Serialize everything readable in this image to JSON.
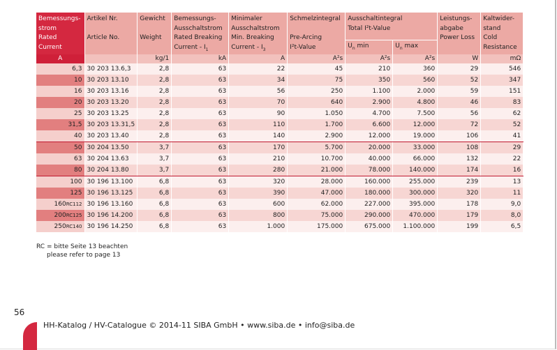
{
  "page_number": "56",
  "table": {
    "header": [
      {
        "de": [
          "Bemessungs-",
          "strom"
        ],
        "en": [
          "Rated",
          "Current"
        ]
      },
      {
        "de": [
          "Artikel Nr."
        ],
        "en": [
          "Article No."
        ]
      },
      {
        "de": [
          "Gewicht"
        ],
        "en": [
          "Weight"
        ]
      },
      {
        "de": [
          "Bemessungs-",
          "Ausschaltstrom"
        ],
        "en": [
          "Rated Breaking",
          {
            "text": "Current - I",
            "sub": "1"
          }
        ]
      },
      {
        "de": [
          "Minimaler",
          "Ausschaltstrom"
        ],
        "en": [
          "Min. Breaking",
          {
            "text": "Current - I",
            "sub": "3"
          }
        ]
      },
      {
        "de": [
          "Schmelzintegral"
        ],
        "en": [
          "Pre-Arcing",
          "I²t-Value"
        ]
      },
      {
        "de": [
          "Ausschaltintegral"
        ],
        "en": [
          "Total I²t-Value"
        ],
        "sub_columns": [
          {
            "text": "U",
            "sub": "n",
            "tail": " min"
          },
          {
            "text": "U",
            "sub": "n",
            "tail": " max"
          }
        ]
      },
      {
        "de": [
          "Leistungs-",
          "abgabe"
        ],
        "en": [
          "Power Loss"
        ]
      },
      {
        "de": [
          "Kaltwider-",
          "stand"
        ],
        "en": [
          "Cold",
          "Resistance"
        ]
      }
    ],
    "units": [
      "A",
      null,
      "kg/1",
      "kA",
      "A",
      "A²s",
      "A²s",
      "A²s",
      "W",
      "mΩ"
    ],
    "rows": [
      {
        "current": "6,3",
        "cells": [
          "30 203 13.6,3",
          "2,8",
          "63",
          "22",
          "45",
          "210",
          "360",
          "29",
          "546"
        ]
      },
      {
        "current": "10",
        "cells": [
          "30 203 13.10",
          "2,8",
          "63",
          "34",
          "75",
          "350",
          "560",
          "52",
          "347"
        ]
      },
      {
        "current": "16",
        "cells": [
          "30 203 13.16",
          "2,8",
          "63",
          "56",
          "250",
          "1.100",
          "2.000",
          "59",
          "151"
        ]
      },
      {
        "current": "20",
        "cells": [
          "30 203 13.20",
          "2,8",
          "63",
          "70",
          "640",
          "2.900",
          "4.800",
          "46",
          "83"
        ]
      },
      {
        "current": "25",
        "cells": [
          "30 203 13.25",
          "2,8",
          "63",
          "90",
          "1.050",
          "4.700",
          "7.500",
          "56",
          "62"
        ]
      },
      {
        "current": "31,5",
        "cells": [
          "30 203 13.31,5",
          "2,8",
          "63",
          "110",
          "1.700",
          "6.600",
          "12.000",
          "72",
          "52"
        ]
      },
      {
        "current": "40",
        "cells": [
          "30 203 13.40",
          "2,8",
          "63",
          "140",
          "2.900",
          "12.000",
          "19.000",
          "106",
          "41"
        ]
      },
      {
        "current": "50",
        "cells": [
          "30 204 13.50",
          "3,7",
          "63",
          "170",
          "5.700",
          "20.000",
          "33.000",
          "108",
          "29"
        ]
      },
      {
        "current": "63",
        "cells": [
          "30 204 13.63",
          "3,7",
          "63",
          "210",
          "10.700",
          "40.000",
          "66.000",
          "132",
          "22"
        ]
      },
      {
        "current": "80",
        "cells": [
          "30 204 13.80",
          "3,7",
          "63",
          "280",
          "21.000",
          "78.000",
          "140.000",
          "174",
          "16"
        ]
      },
      {
        "current": "100",
        "cells": [
          "30 196 13.100",
          "6,8",
          "63",
          "320",
          "28.000",
          "160.000",
          "255.000",
          "239",
          "13"
        ]
      },
      {
        "current": "125",
        "cells": [
          "30 196 13.125",
          "6,8",
          "63",
          "390",
          "47.000",
          "180.000",
          "300.000",
          "320",
          "11"
        ]
      },
      {
        "current": "160",
        "rc": "RC112",
        "cells": [
          "30 196 13.160",
          "6,8",
          "63",
          "600",
          "62.000",
          "227.000",
          "395.000",
          "178",
          "9,0"
        ]
      },
      {
        "current": "200",
        "rc": "RC125",
        "cells": [
          "30 196 14.200",
          "6,8",
          "63",
          "800",
          "75.000",
          "290.000",
          "470.000",
          "179",
          "8,0"
        ]
      },
      {
        "current": "250",
        "rc": "RC140",
        "cells": [
          "30 196 14.250",
          "6,8",
          "63",
          "1.000",
          "175.000",
          "675.000",
          "1.100.000",
          "199",
          "6,5"
        ]
      }
    ]
  },
  "footnote": [
    "RC = bitte Seite 13 beachten",
    "please refer to page 13"
  ],
  "footer": "HH-Katalog / HV-Catalogue © 2014-11 SIBA GmbH • www.siba.de • info@siba.de"
}
